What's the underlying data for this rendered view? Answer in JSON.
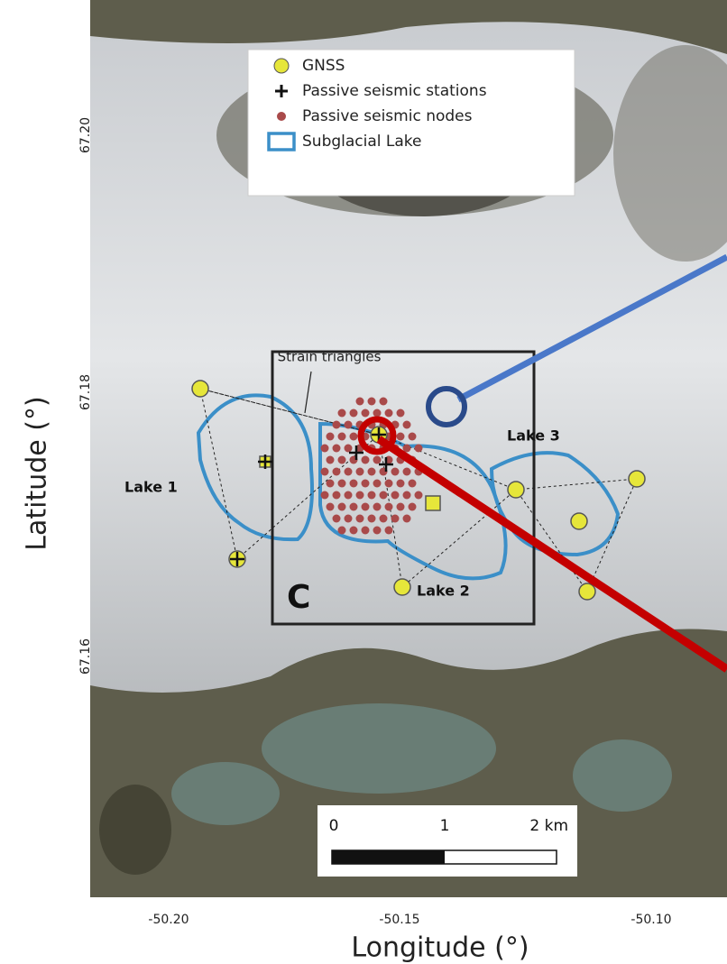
{
  "axes": {
    "x_label": "Longitude (°)",
    "y_label": "Latitude (°)",
    "x_ticks": [
      "-50.20",
      "-50.15",
      "-50.10"
    ],
    "y_ticks": [
      "67.20",
      "67.18",
      "67.16"
    ]
  },
  "legend": [
    {
      "label": "GNSS"
    },
    {
      "label": "Passive seismic stations"
    },
    {
      "label": "Passive seismic nodes"
    },
    {
      "label": "Subglacial Lake"
    }
  ],
  "annotations": {
    "strain": "Strain triangles",
    "lakes": [
      "Lake 1",
      "Lake 2",
      "Lake 3"
    ],
    "panel": "C"
  },
  "scale_bar": {
    "labels": [
      "0",
      "1",
      "2 km"
    ]
  }
}
